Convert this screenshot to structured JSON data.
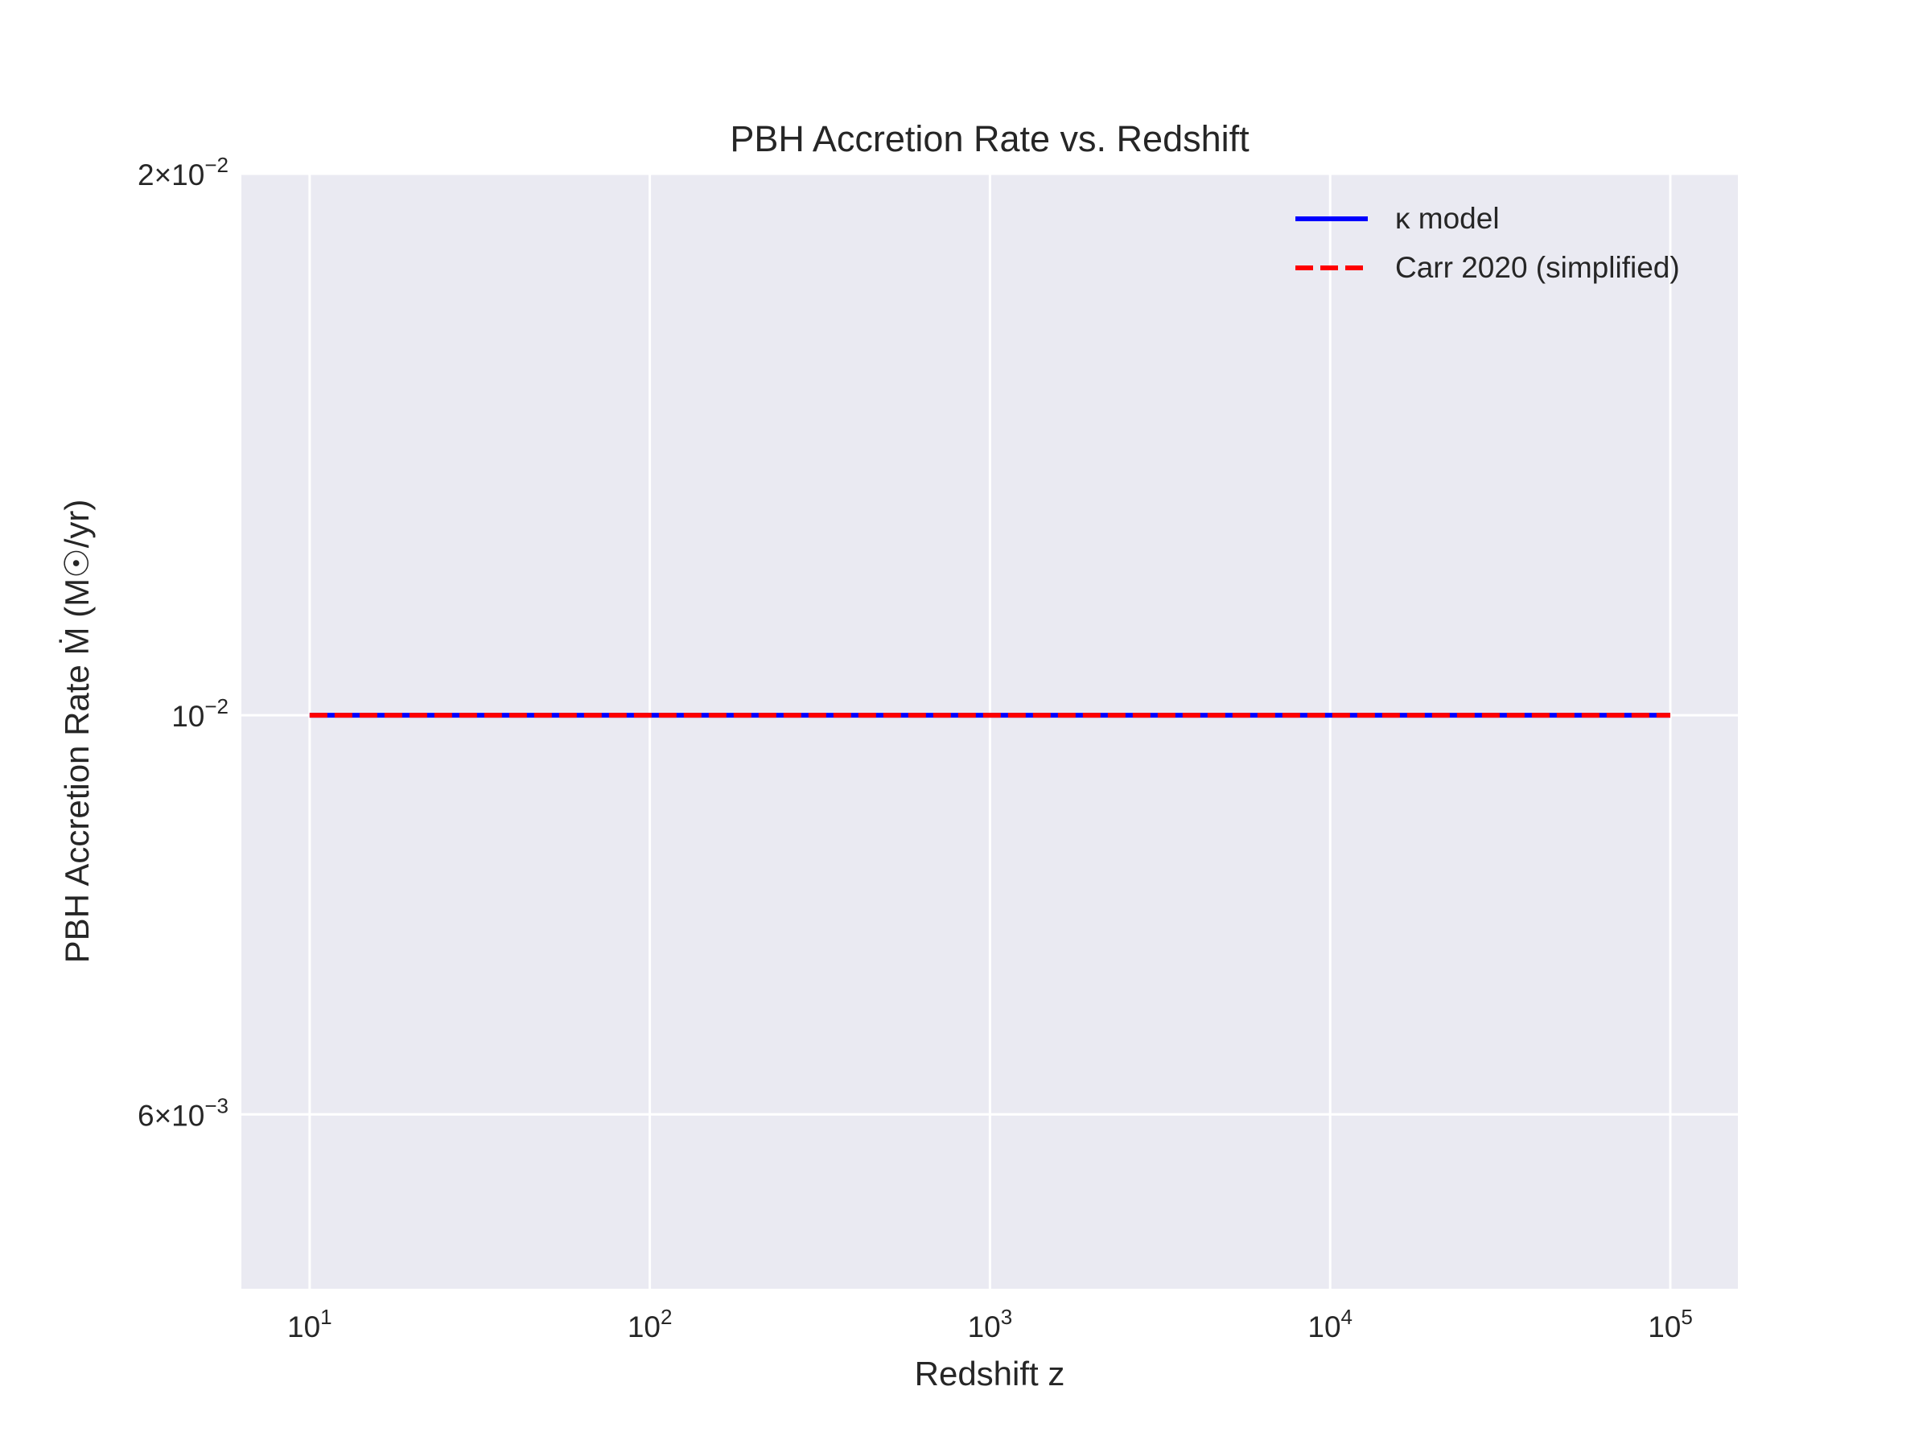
{
  "chart_data": {
    "type": "line",
    "title": "PBH Accretion Rate vs. Redshift",
    "xlabel": "Redshift z",
    "ylabel": "PBH Accretion Rate Ṁ (M☉/yr)",
    "x_scale": "log",
    "y_scale": "log",
    "xlim": [
      6.3,
      158000
    ],
    "ylim": [
      0.0048,
      0.02
    ],
    "grid": true,
    "legend_position": "top-right",
    "x_ticks": [
      {
        "value": 10,
        "label": "10",
        "exp": "1"
      },
      {
        "value": 100,
        "label": "10",
        "exp": "2"
      },
      {
        "value": 1000,
        "label": "10",
        "exp": "3"
      },
      {
        "value": 10000,
        "label": "10",
        "exp": "4"
      },
      {
        "value": 100000,
        "label": "10",
        "exp": "5"
      }
    ],
    "y_ticks": [
      {
        "value": 0.02,
        "label": "2×10",
        "exp": "−2"
      },
      {
        "value": 0.01,
        "label": "10",
        "exp": "−2"
      },
      {
        "value": 0.006,
        "label": "6×10",
        "exp": "−3"
      }
    ],
    "series": [
      {
        "name": "κ model",
        "color": "#0000ff",
        "style": "solid",
        "x": [
          10,
          100000
        ],
        "y": [
          0.01,
          0.01
        ]
      },
      {
        "name": "Carr 2020 (simplified)",
        "color": "#ff0000",
        "style": "dashed",
        "x": [
          10,
          100000
        ],
        "y": [
          0.01,
          0.01
        ]
      }
    ]
  }
}
